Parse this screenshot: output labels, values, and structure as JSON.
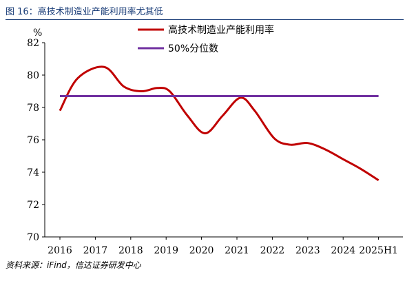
{
  "figure": {
    "title": "图 16：高技术制造业产能利用率尤其低",
    "source": "资料来源：iFind，信达证券研发中心"
  },
  "chart_data": {
    "type": "line",
    "title": "",
    "xlabel": "",
    "ylabel": "%",
    "ylim": [
      70,
      82
    ],
    "yticks": [
      70,
      72,
      74,
      76,
      78,
      80,
      82
    ],
    "categories": [
      "2016",
      "2017",
      "2018",
      "2019",
      "2020",
      "2021",
      "2022",
      "2023",
      "2024",
      "2025H1"
    ],
    "legend_position": "top",
    "grid": false,
    "series": [
      {
        "name": "高技术制造业产能利用率",
        "color": "#c00000",
        "x": [
          2016.0,
          2016.5,
          2017.25,
          2017.8,
          2018.3,
          2018.75,
          2019.1,
          2019.6,
          2020.1,
          2020.6,
          2021.1,
          2021.5,
          2022.05,
          2022.5,
          2023.0,
          2023.5,
          2024.0,
          2024.5,
          2025.0
        ],
        "values": [
          77.8,
          79.8,
          80.5,
          79.3,
          79.0,
          79.2,
          79.0,
          77.5,
          76.4,
          77.5,
          78.6,
          77.8,
          76.1,
          75.7,
          75.8,
          75.4,
          74.8,
          74.2,
          73.5
        ]
      },
      {
        "name": "50%分位数",
        "color": "#7030a0",
        "x": [
          2016.0,
          2025.0
        ],
        "values": [
          78.7,
          78.7
        ]
      }
    ]
  }
}
